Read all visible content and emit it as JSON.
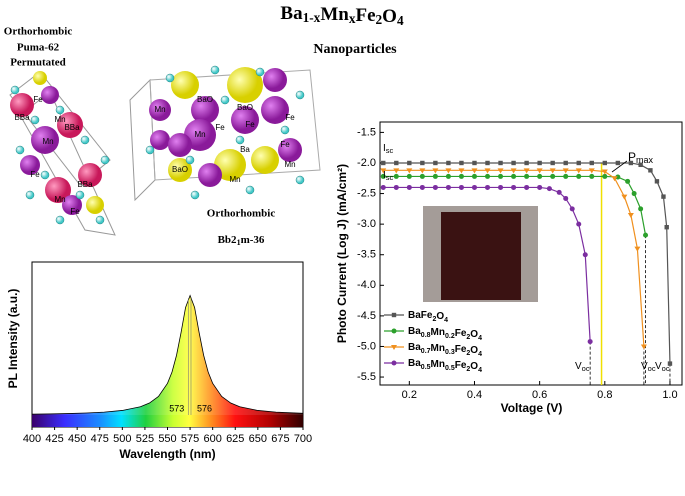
{
  "header": {
    "title": "Ba1-xMnxFe2O4",
    "left_labels": [
      "Orthorhombic",
      "Puma-62",
      "Permutated"
    ],
    "center_label": "Nanoparticles",
    "bottom_labels": {
      "line1": "Orthorhombic",
      "line2": {
        "before": "Bb2",
        "sub": "1",
        "after": "m-36"
      }
    },
    "left_atoms": [
      "Fe",
      "Mn",
      "BBa",
      "BBa",
      "Mn",
      "Fe",
      "BBa",
      "Mn",
      "Fe"
    ],
    "center_atoms": [
      "Mn",
      "BaO",
      "BaO",
      "Mn",
      "Fe",
      "Fe",
      "Ba",
      "BaO",
      "Fe",
      "Mn",
      "Fe",
      "Mn"
    ]
  },
  "chart_data": [
    {
      "type": "line",
      "xlabel": "Wavelength (nm)",
      "ylabel": "PL Intensity (a.u.)",
      "xlim": [
        400,
        700
      ],
      "ylim": [
        0,
        1.28
      ],
      "xticks": [
        400,
        425,
        450,
        475,
        500,
        525,
        550,
        575,
        600,
        625,
        650,
        675,
        700
      ],
      "markers": [
        573,
        576
      ],
      "x": [
        400,
        420,
        440,
        460,
        480,
        500,
        520,
        530,
        540,
        550,
        555,
        560,
        565,
        570,
        575,
        580,
        585,
        590,
        595,
        600,
        610,
        620,
        630,
        650,
        670,
        700
      ],
      "values": [
        0.007,
        0.009,
        0.012,
        0.017,
        0.024,
        0.038,
        0.069,
        0.1,
        0.155,
        0.265,
        0.36,
        0.5,
        0.69,
        0.9,
        1,
        0.9,
        0.69,
        0.5,
        0.36,
        0.265,
        0.155,
        0.1,
        0.069,
        0.038,
        0.024,
        0.014
      ],
      "color": "#000000"
    },
    {
      "type": "line",
      "xlabel": "Voltage (V)",
      "ylabel": "Photo Current (Log J) (mA/cm²)",
      "xlim": [
        0.11,
        1.04
      ],
      "ylim": [
        -5.63,
        -1.33
      ],
      "xticks": [
        0.2,
        0.4,
        0.6,
        0.8,
        {
          "value": 1,
          "label": "1.0"
        }
      ],
      "yticks": [
        -1.5,
        {
          "value": -2,
          "label": "-2.0"
        },
        -2.5,
        {
          "value": -3,
          "label": "-3.0"
        },
        -3.5,
        {
          "value": -4,
          "label": "-4.0"
        },
        -4.5,
        {
          "value": -5,
          "label": "-5.0"
        },
        -5.5
      ],
      "legend": "lower left",
      "pmax_voltage": 0.79,
      "annotations": [
        {
          "text": "I",
          "sub": "sc"
        },
        {
          "text": "I",
          "sub": "sc"
        },
        {
          "text": "P",
          "sub": "max"
        },
        {
          "text": "V",
          "sub": "oc"
        },
        {
          "text": "V",
          "sub": "oc"
        },
        {
          "text": "V",
          "sub": "oc"
        }
      ],
      "series": [
        {
          "name": "BaFe2O4",
          "color": "#555555",
          "marker": "square",
          "x": [
            0.12,
            0.16,
            0.2,
            0.24,
            0.28,
            0.32,
            0.36,
            0.4,
            0.44,
            0.48,
            0.52,
            0.56,
            0.6,
            0.64,
            0.68,
            0.72,
            0.76,
            0.8,
            0.84,
            0.88,
            0.91,
            0.94,
            0.96,
            0.98,
            0.99,
            1.0
          ],
          "values": [
            -2,
            -2,
            -2,
            -2,
            -2,
            -2,
            -2,
            -2,
            -2,
            -2,
            -2,
            -2,
            -2,
            -2,
            -2,
            -2,
            -2,
            -2,
            -2,
            -2,
            -2.03,
            -2.12,
            -2.3,
            -2.55,
            -3.05,
            -5.28
          ]
        },
        {
          "name": "Ba0.8Mn0.2Fe2O4",
          "color": "#2ca02c",
          "marker": "circle",
          "x": [
            0.12,
            0.16,
            0.2,
            0.24,
            0.28,
            0.32,
            0.36,
            0.4,
            0.44,
            0.48,
            0.52,
            0.56,
            0.6,
            0.64,
            0.68,
            0.72,
            0.76,
            0.8,
            0.84,
            0.87,
            0.89,
            0.91,
            0.925
          ],
          "values": [
            -2.22,
            -2.22,
            -2.22,
            -2.22,
            -2.22,
            -2.22,
            -2.22,
            -2.22,
            -2.22,
            -2.22,
            -2.22,
            -2.22,
            -2.22,
            -2.22,
            -2.22,
            -2.22,
            -2.22,
            -2.22,
            -2.23,
            -2.3,
            -2.5,
            -2.75,
            -3.18
          ]
        },
        {
          "name": "Ba0.7Mn0.3Fe2O4",
          "color": "#f0901e",
          "marker": "triangle",
          "x": [
            0.12,
            0.16,
            0.2,
            0.24,
            0.28,
            0.32,
            0.36,
            0.4,
            0.44,
            0.48,
            0.52,
            0.56,
            0.6,
            0.64,
            0.68,
            0.72,
            0.76,
            0.8,
            0.83,
            0.86,
            0.88,
            0.9,
            0.92
          ],
          "values": [
            -2.12,
            -2.12,
            -2.12,
            -2.12,
            -2.12,
            -2.12,
            -2.12,
            -2.12,
            -2.12,
            -2.12,
            -2.12,
            -2.12,
            -2.12,
            -2.12,
            -2.12,
            -2.12,
            -2.12,
            -2.14,
            -2.25,
            -2.55,
            -2.85,
            -3.4,
            -5.0
          ]
        },
        {
          "name": "Ba0.5Mn0.5Fe2O4",
          "color": "#7b2ea0",
          "marker": "circle",
          "x": [
            0.12,
            0.16,
            0.2,
            0.24,
            0.28,
            0.32,
            0.36,
            0.4,
            0.44,
            0.48,
            0.52,
            0.56,
            0.6,
            0.63,
            0.66,
            0.68,
            0.7,
            0.72,
            0.74,
            0.755
          ],
          "values": [
            -2.4,
            -2.4,
            -2.4,
            -2.4,
            -2.4,
            -2.4,
            -2.4,
            -2.4,
            -2.4,
            -2.4,
            -2.4,
            -2.4,
            -2.4,
            -2.42,
            -2.48,
            -2.58,
            -2.75,
            -3.0,
            -3.5,
            -4.92
          ]
        }
      ]
    }
  ]
}
